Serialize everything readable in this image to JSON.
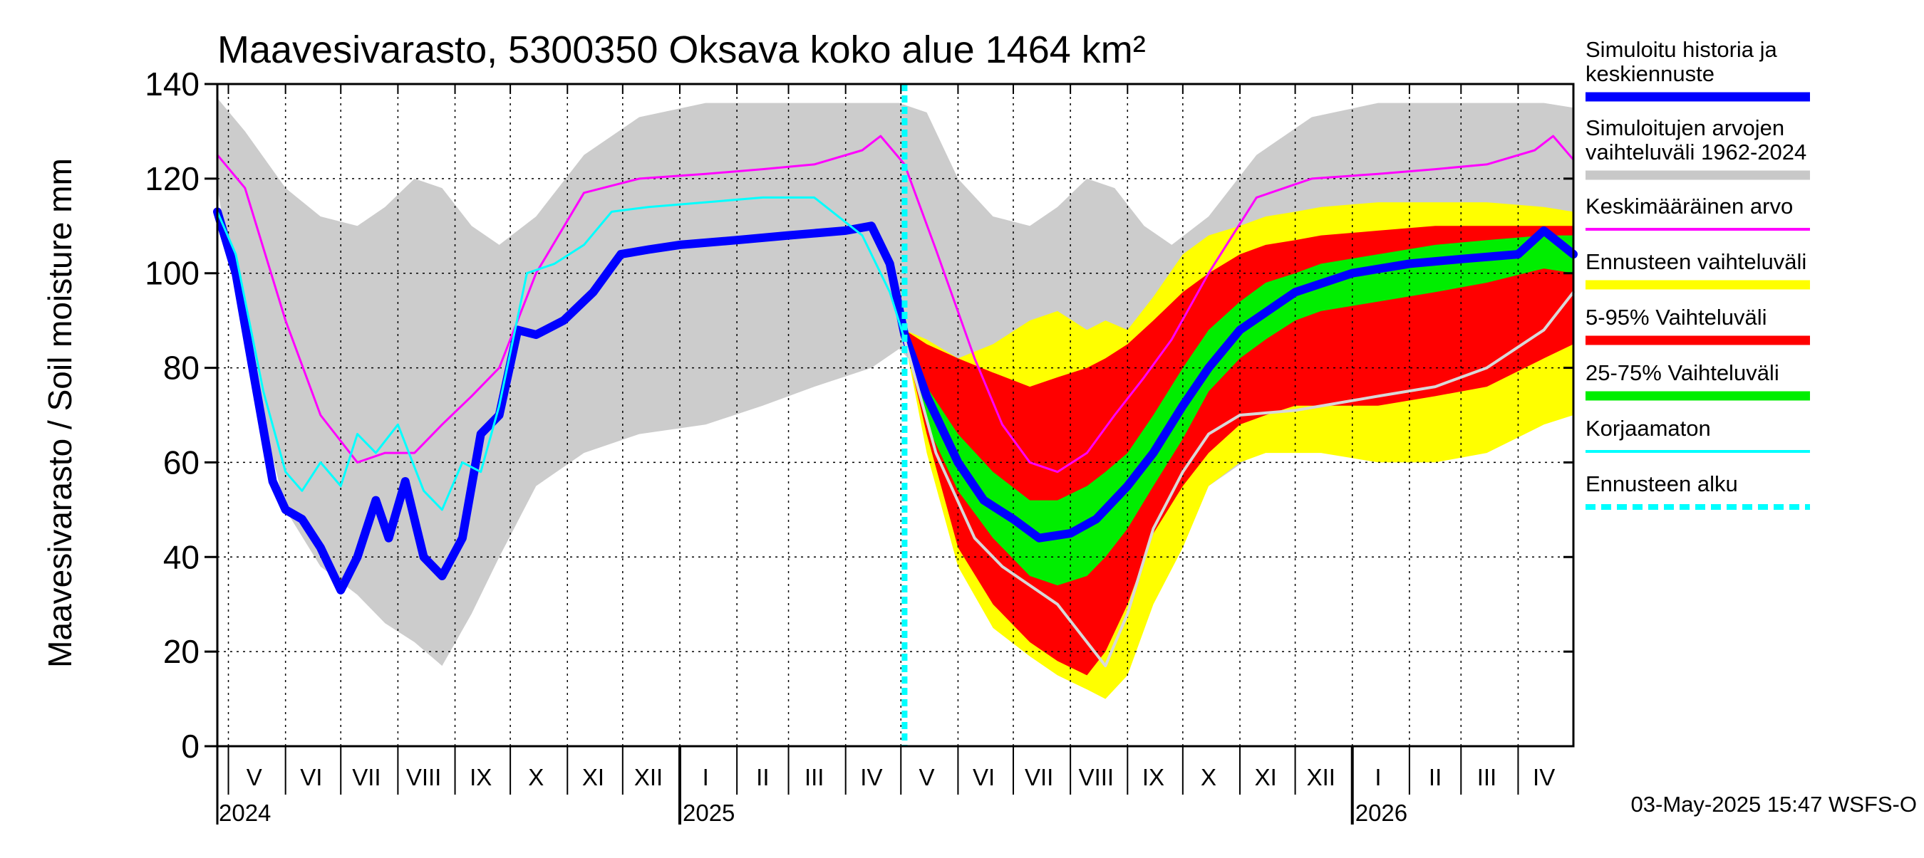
{
  "chart_data": {
    "type": "area",
    "title": "Maavesivarasto, 5300350 Oksava koko alue 1464 km²",
    "ylabel": "Maavesivarasto / Soil moisture   mm",
    "xlabel": "",
    "ylim": [
      0,
      140
    ],
    "y_ticks": [
      0,
      20,
      40,
      60,
      80,
      100,
      120,
      140
    ],
    "x_range": [
      "2024-04-25",
      "2026-05-01"
    ],
    "forecast_start": "2025-05-03",
    "months": [
      {
        "label": "V",
        "date": "2024-05-15"
      },
      {
        "label": "VI",
        "date": "2024-06-15"
      },
      {
        "label": "VII",
        "date": "2024-07-15"
      },
      {
        "label": "VIII",
        "date": "2024-08-15"
      },
      {
        "label": "IX",
        "date": "2024-09-15"
      },
      {
        "label": "X",
        "date": "2024-10-15"
      },
      {
        "label": "XI",
        "date": "2024-11-15"
      },
      {
        "label": "XII",
        "date": "2024-12-15"
      },
      {
        "label": "I",
        "date": "2025-01-15"
      },
      {
        "label": "II",
        "date": "2025-02-15"
      },
      {
        "label": "III",
        "date": "2025-03-15"
      },
      {
        "label": "IV",
        "date": "2025-04-15"
      },
      {
        "label": "V",
        "date": "2025-05-15"
      },
      {
        "label": "VI",
        "date": "2025-06-15"
      },
      {
        "label": "VII",
        "date": "2025-07-15"
      },
      {
        "label": "VIII",
        "date": "2025-08-15"
      },
      {
        "label": "IX",
        "date": "2025-09-15"
      },
      {
        "label": "X",
        "date": "2025-10-15"
      },
      {
        "label": "XI",
        "date": "2025-11-15"
      },
      {
        "label": "XII",
        "date": "2025-12-15"
      },
      {
        "label": "I",
        "date": "2026-01-15"
      },
      {
        "label": "II",
        "date": "2026-02-15"
      },
      {
        "label": "III",
        "date": "2026-03-15"
      },
      {
        "label": "IV",
        "date": "2026-04-15"
      }
    ],
    "years": [
      {
        "label": "2024",
        "date": "2024-04-25"
      },
      {
        "label": "2025",
        "date": "2025-01-01"
      },
      {
        "label": "2026",
        "date": "2026-01-01"
      }
    ],
    "legend": [
      {
        "label": "Simuloitu historia ja\nkeskiennuste",
        "color": "#0000ff",
        "style": "thick"
      },
      {
        "label": "Simuloitujen arvojen\nvaihteluväli 1962-2024",
        "color": "#c8c8c8",
        "style": "thick"
      },
      {
        "label": "Keskimääräinen arvo",
        "color": "#ff00ff",
        "style": "thin"
      },
      {
        "label": "Ennusteen vaihteluväli",
        "color": "#ffff00",
        "style": "thick"
      },
      {
        "label": "5-95% Vaihteluväli",
        "color": "#ff0000",
        "style": "thick"
      },
      {
        "label": "25-75% Vaihteluväli",
        "color": "#00ee00",
        "style": "thick"
      },
      {
        "label": "Korjaamaton",
        "color": "#00ffff",
        "style": "thin"
      },
      {
        "label": "Ennusteen alku",
        "color": "#00ffff",
        "style": "dashed"
      }
    ],
    "series": [
      {
        "name": "Simuloitujen arvojen vaihteluväli 1962-2024",
        "kind": "band",
        "color": "#cccccc",
        "x": [
          "2024-04-25",
          "2024-05-10",
          "2024-06-01",
          "2024-06-20",
          "2024-07-10",
          "2024-07-25",
          "2024-08-10",
          "2024-08-25",
          "2024-09-10",
          "2024-09-25",
          "2024-10-15",
          "2024-11-10",
          "2024-12-10",
          "2025-01-15",
          "2025-02-15",
          "2025-03-15",
          "2025-04-15",
          "2025-04-30",
          "2025-05-15",
          "2025-06-01",
          "2025-06-20",
          "2025-07-10",
          "2025-07-25",
          "2025-08-10",
          "2025-08-25",
          "2025-09-10",
          "2025-09-25",
          "2025-10-15",
          "2025-11-10",
          "2025-12-10",
          "2026-01-15",
          "2026-02-15",
          "2026-03-15",
          "2026-04-15",
          "2026-05-01"
        ],
        "upper": [
          137,
          130,
          118,
          112,
          110,
          114,
          120,
          118,
          110,
          106,
          112,
          125,
          133,
          136,
          136,
          136,
          136,
          136,
          134,
          120,
          112,
          110,
          114,
          120,
          118,
          110,
          106,
          112,
          125,
          133,
          136,
          136,
          136,
          136,
          135
        ],
        "lower": [
          118,
          85,
          50,
          38,
          32,
          26,
          22,
          17,
          28,
          40,
          55,
          62,
          66,
          68,
          72,
          76,
          80,
          84,
          78,
          50,
          38,
          32,
          26,
          22,
          17,
          28,
          40,
          55,
          62,
          66,
          68,
          72,
          76,
          80,
          84
        ]
      },
      {
        "name": "Ennusteen vaihteluväli",
        "kind": "band",
        "color": "#ffff00",
        "x": [
          "2025-05-03",
          "2025-05-15",
          "2025-06-01",
          "2025-06-20",
          "2025-07-10",
          "2025-07-25",
          "2025-08-10",
          "2025-08-20",
          "2025-09-01",
          "2025-09-15",
          "2025-10-01",
          "2025-10-15",
          "2025-11-01",
          "2025-11-15",
          "2025-12-01",
          "2025-12-15",
          "2026-01-15",
          "2026-02-15",
          "2026-03-15",
          "2026-04-15",
          "2026-05-01"
        ],
        "upper": [
          88,
          86,
          82,
          85,
          90,
          92,
          88,
          90,
          88,
          95,
          104,
          108,
          110,
          112,
          113,
          114,
          115,
          115,
          115,
          114,
          113
        ],
        "lower": [
          86,
          62,
          38,
          25,
          19,
          15,
          12,
          10,
          15,
          30,
          42,
          55,
          60,
          62,
          62,
          62,
          60,
          60,
          62,
          68,
          70
        ]
      },
      {
        "name": "5-95% Vaihteluväli",
        "kind": "band",
        "color": "#ff0000",
        "x": [
          "2025-05-03",
          "2025-05-15",
          "2025-06-01",
          "2025-06-20",
          "2025-07-10",
          "2025-07-25",
          "2025-08-10",
          "2025-08-20",
          "2025-09-01",
          "2025-09-15",
          "2025-10-01",
          "2025-10-15",
          "2025-11-01",
          "2025-11-15",
          "2025-12-01",
          "2025-12-15",
          "2026-01-15",
          "2026-02-15",
          "2026-03-15",
          "2026-04-15",
          "2026-05-01"
        ],
        "upper": [
          88,
          85,
          82,
          79,
          76,
          78,
          80,
          82,
          85,
          90,
          96,
          100,
          104,
          106,
          107,
          108,
          109,
          110,
          110,
          110,
          110
        ],
        "lower": [
          86,
          66,
          42,
          30,
          22,
          18,
          15,
          20,
          30,
          45,
          55,
          62,
          68,
          70,
          72,
          72,
          72,
          74,
          76,
          82,
          85
        ]
      },
      {
        "name": "25-75% Vaihteluväli",
        "kind": "band",
        "color": "#00ee00",
        "x": [
          "2025-05-03",
          "2025-05-15",
          "2025-06-01",
          "2025-06-20",
          "2025-07-10",
          "2025-07-25",
          "2025-08-10",
          "2025-08-20",
          "2025-09-01",
          "2025-09-15",
          "2025-10-01",
          "2025-10-15",
          "2025-11-01",
          "2025-11-15",
          "2025-12-01",
          "2025-12-15",
          "2026-01-15",
          "2026-02-15",
          "2026-03-15",
          "2026-04-15",
          "2026-05-01"
        ],
        "upper": [
          88,
          76,
          66,
          58,
          52,
          52,
          55,
          58,
          62,
          70,
          80,
          88,
          94,
          98,
          100,
          102,
          104,
          106,
          107,
          108,
          108
        ],
        "lower": [
          86,
          68,
          54,
          44,
          36,
          34,
          36,
          40,
          46,
          55,
          65,
          75,
          82,
          86,
          90,
          92,
          94,
          96,
          98,
          101,
          100
        ]
      },
      {
        "name": "Simuloitu historia ja keskiennuste",
        "kind": "line",
        "color": "#0000ff",
        "width": 12,
        "x": [
          "2024-04-25",
          "2024-05-05",
          "2024-05-15",
          "2024-05-25",
          "2024-06-01",
          "2024-06-10",
          "2024-06-20",
          "2024-07-01",
          "2024-07-10",
          "2024-07-20",
          "2024-07-27",
          "2024-08-05",
          "2024-08-15",
          "2024-08-25",
          "2024-09-05",
          "2024-09-15",
          "2024-09-25",
          "2024-10-05",
          "2024-10-15",
          "2024-10-30",
          "2024-11-15",
          "2024-11-30",
          "2024-12-15",
          "2025-01-01",
          "2025-02-01",
          "2025-03-01",
          "2025-04-01",
          "2025-04-15",
          "2025-04-25",
          "2025-05-03",
          "2025-05-15",
          "2025-06-01",
          "2025-06-15",
          "2025-07-01",
          "2025-07-15",
          "2025-08-01",
          "2025-08-15",
          "2025-09-01",
          "2025-09-15",
          "2025-10-01",
          "2025-10-15",
          "2025-11-01",
          "2025-12-01",
          "2026-01-01",
          "2026-02-01",
          "2026-03-01",
          "2026-04-01",
          "2026-04-15",
          "2026-05-01"
        ],
        "y": [
          113,
          100,
          78,
          56,
          50,
          48,
          42,
          33,
          40,
          52,
          44,
          56,
          40,
          36,
          44,
          66,
          70,
          88,
          87,
          90,
          96,
          104,
          105,
          106,
          107,
          108,
          109,
          110,
          102,
          87,
          74,
          60,
          52,
          48,
          44,
          45,
          48,
          55,
          62,
          72,
          80,
          88,
          96,
          100,
          102,
          103,
          104,
          109,
          104
        ]
      },
      {
        "name": "Keskimääräinen arvo",
        "kind": "line",
        "color": "#ff00ff",
        "width": 3,
        "x": [
          "2024-04-25",
          "2024-05-10",
          "2024-06-01",
          "2024-06-20",
          "2024-07-10",
          "2024-07-25",
          "2024-08-10",
          "2024-08-25",
          "2024-09-10",
          "2024-09-25",
          "2024-10-15",
          "2024-11-10",
          "2024-12-10",
          "2025-01-15",
          "2025-02-15",
          "2025-03-15",
          "2025-04-10",
          "2025-04-20",
          "2025-05-03",
          "2025-05-20",
          "2025-06-10",
          "2025-06-25",
          "2025-07-10",
          "2025-07-25",
          "2025-08-10",
          "2025-08-25",
          "2025-09-10",
          "2025-09-25",
          "2025-10-15",
          "2025-11-10",
          "2025-12-10",
          "2026-01-15",
          "2026-02-15",
          "2026-03-15",
          "2026-04-10",
          "2026-04-20",
          "2026-05-01"
        ],
        "y": [
          125,
          118,
          90,
          70,
          60,
          62,
          62,
          68,
          74,
          80,
          100,
          117,
          120,
          121,
          122,
          123,
          126,
          129,
          123,
          105,
          82,
          68,
          60,
          58,
          62,
          70,
          78,
          86,
          100,
          116,
          120,
          121,
          122,
          123,
          126,
          129,
          124
        ]
      },
      {
        "name": "Korjaamaton",
        "kind": "line",
        "color": "#00ffff",
        "width": 3,
        "x": [
          "2024-04-25",
          "2024-05-05",
          "2024-05-20",
          "2024-06-01",
          "2024-06-10",
          "2024-06-20",
          "2024-07-01",
          "2024-07-10",
          "2024-07-20",
          "2024-08-01",
          "2024-08-15",
          "2024-08-25",
          "2024-09-05",
          "2024-09-15",
          "2024-09-25",
          "2024-10-10",
          "2024-10-25",
          "2024-11-10",
          "2024-11-25",
          "2024-12-15",
          "2025-01-15",
          "2025-02-15",
          "2025-03-15",
          "2025-04-10",
          "2025-04-25",
          "2025-05-03"
        ],
        "y": [
          113,
          104,
          75,
          58,
          54,
          60,
          55,
          66,
          62,
          68,
          54,
          50,
          60,
          58,
          72,
          100,
          102,
          106,
          113,
          114,
          115,
          116,
          116,
          108,
          96,
          86
        ]
      },
      {
        "name": "",
        "kind": "line",
        "color": "#d8d8d8",
        "width": 4,
        "x": [
          "2025-05-03",
          "2025-05-20",
          "2025-06-10",
          "2025-06-25",
          "2025-07-10",
          "2025-07-25",
          "2025-08-10",
          "2025-08-20",
          "2025-09-01",
          "2025-09-15",
          "2025-10-01",
          "2025-10-15",
          "2025-11-01",
          "2025-12-01",
          "2026-01-15",
          "2026-02-15",
          "2026-03-15",
          "2026-04-15",
          "2026-05-01"
        ],
        "y": [
          86,
          62,
          44,
          38,
          34,
          30,
          22,
          17,
          28,
          46,
          58,
          66,
          70,
          71,
          74,
          76,
          80,
          88,
          96
        ]
      }
    ]
  },
  "footer": {
    "timestamp": "03-May-2025 15:47 WSFS-O"
  }
}
